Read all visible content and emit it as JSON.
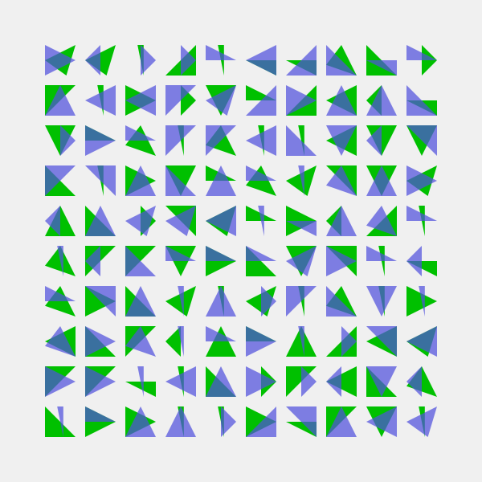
{
  "colors": {
    "background": "#f0f0f0",
    "green": "#00c000",
    "blue": "#5050dc"
  },
  "grid": {
    "rows": 10,
    "columns": 10,
    "shape": "triangle pairs (one green, one translucent blue) per cell"
  }
}
